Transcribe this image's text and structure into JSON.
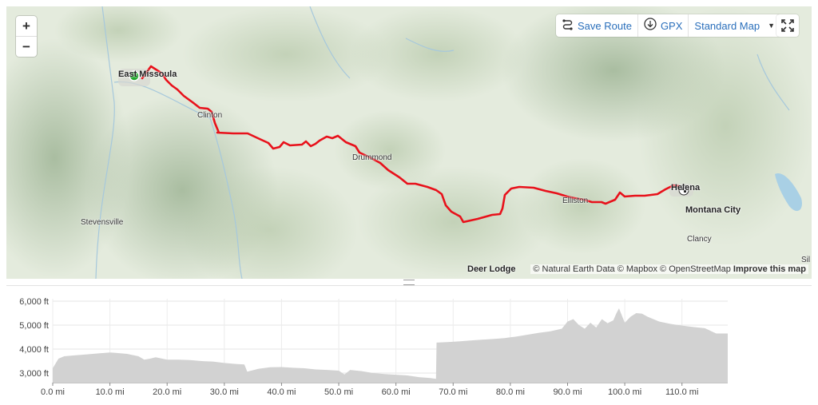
{
  "map": {
    "zoom_in": "+",
    "zoom_out": "−",
    "save_route_label": "Save Route",
    "gpx_label": "GPX",
    "map_style_label": "Standard Map",
    "attribution": {
      "text": "© Natural Earth Data © Mapbox © OpenStreetMap",
      "improve": "Improve this map"
    },
    "places": [
      {
        "name": "East Missoula",
        "style": "big"
      },
      {
        "name": "Clinton",
        "style": "normal"
      },
      {
        "name": "Drummond",
        "style": "normal"
      },
      {
        "name": "Stevensville",
        "style": "normal"
      },
      {
        "name": "Elliston",
        "style": "normal"
      },
      {
        "name": "Helena",
        "style": "big"
      },
      {
        "name": "Montana City",
        "style": "big"
      },
      {
        "name": "Clancy",
        "style": "normal"
      },
      {
        "name": "Deer Lodge",
        "style": "big"
      },
      {
        "name": "Sil",
        "style": "normal"
      }
    ],
    "route_color": "#e8111b",
    "start_marker_color": "#1fa82a"
  },
  "chart_data": {
    "type": "area",
    "xlabel": "",
    "ylabel": "",
    "x_ticks": [
      "0.0 mi",
      "10.0 mi",
      "20.0 mi",
      "30.0 mi",
      "40.0 mi",
      "50.0 mi",
      "60.0 mi",
      "70.0 mi",
      "80.0 mi",
      "90.0 mi",
      "100.0 mi",
      "110.0 mi"
    ],
    "y_ticks": [
      "3,000 ft",
      "4,000 ft",
      "5,000 ft",
      "6,000 ft"
    ],
    "xlim": [
      0,
      118
    ],
    "ylim": [
      2600,
      6100
    ],
    "fill_color": "#d2d2d2",
    "series": [
      {
        "x": [
          0,
          1,
          2,
          4,
          6,
          8,
          10,
          11,
          13,
          15,
          16,
          17,
          18,
          20,
          22,
          24,
          26,
          28,
          30,
          32,
          33.5,
          34,
          36,
          38,
          40,
          42,
          44,
          46,
          48,
          50,
          51,
          52,
          54,
          56,
          58,
          60,
          62,
          64,
          66,
          67,
          67.1,
          69,
          71,
          73,
          75,
          77,
          79,
          81,
          83,
          85,
          87,
          89,
          90,
          91,
          92,
          93,
          94,
          95,
          96,
          97,
          98,
          98.5,
          99,
          100,
          101,
          102,
          103,
          104,
          105,
          106,
          108,
          110,
          112,
          114,
          116,
          118
        ],
        "y": [
          3200,
          3600,
          3700,
          3740,
          3780,
          3820,
          3860,
          3840,
          3800,
          3700,
          3560,
          3600,
          3660,
          3560,
          3560,
          3540,
          3500,
          3480,
          3420,
          3380,
          3360,
          3060,
          3180,
          3240,
          3250,
          3220,
          3200,
          3150,
          3130,
          3100,
          2940,
          3130,
          3080,
          3000,
          2960,
          2930,
          2900,
          2830,
          2790,
          2760,
          4270,
          4290,
          4320,
          4360,
          4390,
          4420,
          4460,
          4520,
          4600,
          4680,
          4740,
          4850,
          5150,
          5250,
          5000,
          4850,
          5100,
          4900,
          5250,
          5080,
          5200,
          5480,
          5700,
          5100,
          5350,
          5500,
          5480,
          5350,
          5250,
          5150,
          5050,
          4980,
          4920,
          4870,
          4650,
          4650
        ]
      }
    ]
  }
}
